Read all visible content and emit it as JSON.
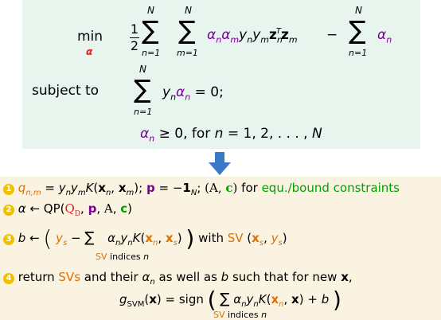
{
  "problem": {
    "min_word": "min",
    "min_var": "α",
    "half_num": "1",
    "half_den": "2",
    "sum_upper": "N",
    "sum_lower_n": "n=1",
    "sum_lower_m": "m=1",
    "objective_term": "αnαmynymzTnzm",
    "minus": "−",
    "last_term": "αn",
    "subject_to": "subject to",
    "constraint1": "ynαn = 0;",
    "constraint2": "αn ≥ 0, for n = 1, 2, . . . , N"
  },
  "steps": [
    {
      "num": "1",
      "text": "qn,m = ynymK(xn, xm); p = −1N; (A, c) for equ./bound constraints"
    },
    {
      "num": "2",
      "text": "α ← QP(QD, p, A, c)"
    },
    {
      "num": "3",
      "text": "b ← (ys − Σ αnynK(xn, xs)) with SV (xs, ys)",
      "sub": "SV indices n"
    },
    {
      "num": "4",
      "text": "return SVs and their αn as well as b such that for new x,"
    },
    {
      "num": "",
      "text": "gSVM(x) = sign (Σ αnynK(xn, x) + b)",
      "sub": "SV indices n"
    }
  ],
  "arrow_color": "#3a78c8",
  "top_bg": "#e8f4ee",
  "bottom_bg": "#fbf3e2"
}
